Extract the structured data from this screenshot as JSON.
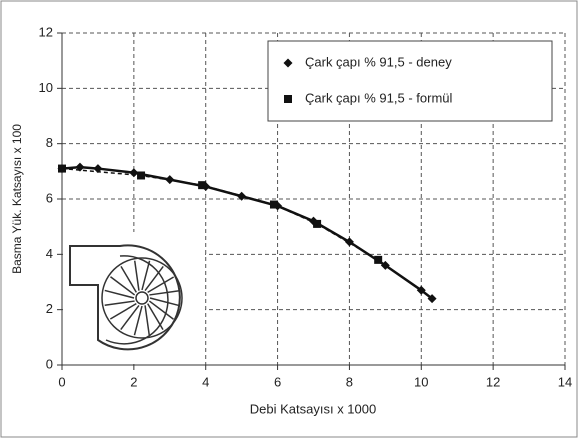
{
  "chart_data": {
    "type": "line",
    "x_label": "Debi Katsayısı x 1000",
    "y_label": "Basma Yük. Katsayısı x 100",
    "xlim": [
      0,
      14
    ],
    "xticks": [
      0,
      2,
      4,
      6,
      8,
      10,
      12,
      14
    ],
    "ylim": [
      0,
      12
    ],
    "yticks": [
      0,
      2,
      4,
      6,
      8,
      10,
      12
    ],
    "grid": true,
    "legend": "top-right",
    "series": [
      {
        "name": "Çark çapı % 91,5 - deney",
        "color": "#111111",
        "marker": "diamond",
        "x": [
          0,
          0.5,
          1,
          2,
          3,
          4,
          5,
          6,
          7,
          8,
          9,
          10,
          10.3
        ],
        "values": [
          7.1,
          7.15,
          7.1,
          6.95,
          6.7,
          6.45,
          6.1,
          5.75,
          5.2,
          4.45,
          3.6,
          2.7,
          2.4
        ]
      },
      {
        "name": "Çark çapı % 91,5 - formül",
        "color": "#111111",
        "marker": "square",
        "x": [
          0,
          2.2,
          3.9,
          5.9,
          7.1,
          8.8
        ],
        "values": [
          7.1,
          6.85,
          6.5,
          5.8,
          5.1,
          3.8
        ]
      }
    ]
  }
}
